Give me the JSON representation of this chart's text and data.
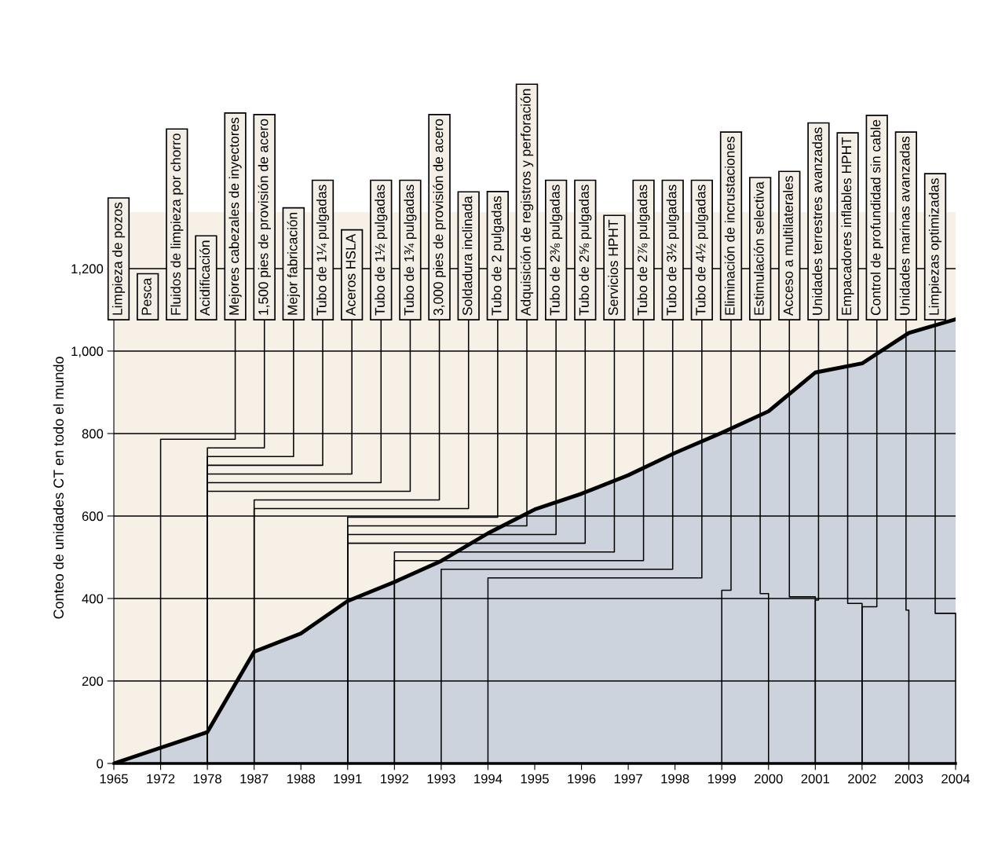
{
  "chart_data": {
    "type": "area",
    "ylabel": "Conteo de unidades CT en todo el mundo",
    "categories": [
      "1965",
      "1972",
      "1978",
      "1987",
      "1988",
      "1991",
      "1992",
      "1993",
      "1994",
      "1995",
      "1996",
      "1997",
      "1998",
      "1999",
      "2000",
      "2001",
      "2002",
      "2003",
      "2004"
    ],
    "ylim": [
      0,
      1337
    ],
    "yticks": [
      0,
      200,
      400,
      600,
      800,
      {
        "value": 1000,
        "label": "1,000"
      },
      {
        "value": 1200,
        "label": "1,200"
      }
    ],
    "grid": "y",
    "series": [
      {
        "color": "#cdd3dd",
        "values": [
          0,
          38,
          76,
          271,
          315,
          394,
          440,
          491,
          558,
          616,
          654,
          699,
          753,
          802,
          854,
          948,
          970,
          1044,
          1077
        ]
      }
    ],
    "annotations": [
      "Limpieza de pozos",
      "Pesca",
      "Fluidos de limpieza por chorro",
      "Acidificación",
      {
        "text": "Mejores cabezales de inyectores",
        "x": "1972",
        "y": 0
      },
      {
        "text": "1,500 pies de provisión de acero",
        "x": "1978",
        "y": 0
      },
      {
        "text": "Mejor fabricación",
        "x": "1978",
        "y": 0
      },
      {
        "text": "Tubo de 1¼ pulgadas",
        "x": "1978",
        "y": 0
      },
      {
        "text": "Aceros HSLA",
        "x": "1978",
        "y": 0
      },
      {
        "text": "Tubo de 1½ pulgadas",
        "x": "1978",
        "y": 0
      },
      {
        "text": "Tubo de 1¾ pulgadas",
        "x": "1978",
        "y": 0
      },
      {
        "text": "3,000 pies de provisión de acero",
        "x": "1987",
        "y": 0
      },
      {
        "text": "Soldadura inclinada",
        "x": "1987",
        "y": 0
      },
      {
        "text": "Tubo de 2 pulgadas",
        "x": "1991",
        "y": 0
      },
      {
        "text": "Adquisición de registros y perforación",
        "x": "1991",
        "y": 0
      },
      {
        "text": "Tubo de 2⅜ pulgadas",
        "x": "1991",
        "y": 0
      },
      {
        "text": "Tubo de 2⅝ pulgadas",
        "x": "1991",
        "y": 0
      },
      {
        "text": "Servicios HPHT",
        "x": "1992",
        "y": 0
      },
      {
        "text": "Tubo de 2⅞ pulgadas",
        "x": "1992",
        "y": 0
      },
      {
        "text": "Tubo de 3½ pulgadas",
        "x": "1993",
        "y": 0
      },
      {
        "text": "Tubo de 4½ pulgadas",
        "x": "1994",
        "y": 0
      },
      {
        "text": "Eliminación de incrustaciones",
        "x": "1999",
        "y": 0
      },
      {
        "text": "Estimulación selectiva",
        "x": "2000",
        "y": 0
      },
      {
        "text": "Acceso a multilaterales",
        "x": "2001",
        "y": 0
      },
      {
        "text": "Unidades terrestres avanzadas",
        "x": "2001",
        "y": 0
      },
      {
        "text": "Empacadores inflables HPHT",
        "x": "2002",
        "y": 0
      },
      {
        "text": "Control de profundidad sin cable",
        "x": "2002",
        "y": 0
      },
      {
        "text": "Unidades marinas avanzadas",
        "x": "2003",
        "y": 0
      },
      {
        "text": "Limpiezas optimizadas",
        "x": "2004",
        "y": 0
      }
    ]
  }
}
